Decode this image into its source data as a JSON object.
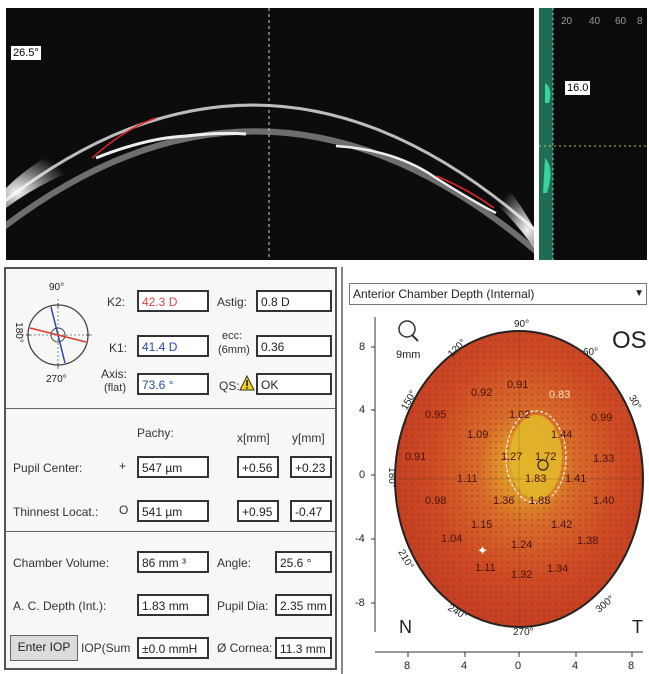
{
  "scan": {
    "angle_label": "26.5°",
    "side_value": "16.0",
    "side_ticks": [
      "20",
      "40",
      "60",
      "8"
    ]
  },
  "keratometry": {
    "compass": {
      "top": "90°",
      "left": "180°",
      "bottom": "270°"
    },
    "k2_label": "K2:",
    "k2_value": "42.3 D",
    "k1_label": "K1:",
    "k1_value": "41.4 D",
    "axis_label": "Axis:",
    "axis_sub": "(flat)",
    "axis_value": "73.6 °",
    "astig_label": "Astig:",
    "astig_value": "0.8 D",
    "ecc_label": "ecc:",
    "ecc_sub": "(6mm)",
    "ecc_value": "0.36",
    "qs_label": "QS:",
    "qs_value": "OK"
  },
  "pachy": {
    "head_pachy": "Pachy:",
    "head_x": "x[mm]",
    "head_y": "y[mm]",
    "pupil_label": "Pupil Center:",
    "pupil_symbol": "+",
    "pupil_value": "547 µm",
    "pupil_x": "+0.56",
    "pupil_y": "+0.23",
    "thin_label": "Thinnest Locat.:",
    "thin_symbol": "O",
    "thin_value": "541 µm",
    "thin_x": "+0.95",
    "thin_y": "-0.47"
  },
  "chamber": {
    "volume_label": "Chamber Volume:",
    "volume_value": "86 mm ³",
    "angle_label": "Angle:",
    "angle_value": "25.6 °",
    "depth_label": "A. C. Depth (Int.):",
    "depth_value": "1.83 mm",
    "pupil_dia_label": "Pupil Dia:",
    "pupil_dia_value": "2.35 mm",
    "enter_iop": "Enter IOP",
    "iop_label": "IOP(Sum",
    "iop_value": "±0.0 mmH",
    "cornea_label": "Ø Cornea:",
    "cornea_value": "11.3 mm"
  },
  "map": {
    "title": "Anterior Chamber Depth (Internal)",
    "eye": "OS",
    "zoom": "9mm",
    "angles": [
      "90°",
      "60°",
      "30°",
      "120°",
      "150°",
      "180°",
      "210°",
      "240°",
      "270°",
      "300°"
    ],
    "y_ticks": [
      "8",
      "4",
      "0",
      "-4",
      "-8"
    ],
    "x_ticks": [
      "8",
      "4",
      "0",
      "4",
      "8"
    ],
    "nasal": "N",
    "temporal": "T",
    "values": [
      "0.92",
      "0.91",
      "0.83",
      "0.95",
      "1.02",
      "0.99",
      "1.09",
      "1.44",
      "0.91",
      "1.27",
      "1.72",
      "1.33",
      "1.11",
      "1.83",
      "1.41",
      "0.98",
      "1.36",
      "1.88",
      "1.40",
      "1.15",
      "1.42",
      "1.04",
      "1.24",
      "1.38",
      "1.11",
      "1.32",
      "1.34"
    ]
  }
}
